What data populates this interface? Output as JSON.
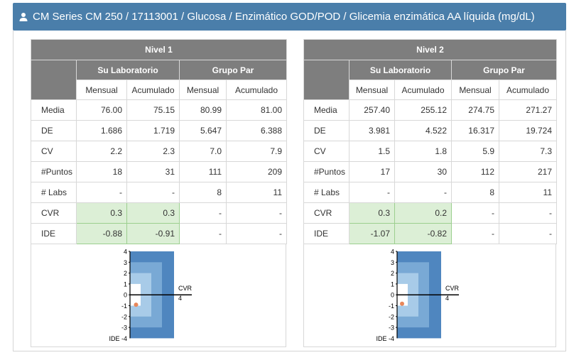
{
  "header": {
    "title": "CM Series CM 250 / 17113001 / Glucosa / Enzimático GOD/POD / Glicemia enzimática AA líquida (mg/dL)"
  },
  "levels": [
    {
      "title": "Nivel 1",
      "group_lab": "Su Laboratorio",
      "group_peer": "Grupo Par",
      "col_mensual": "Mensual",
      "col_acumulado": "Acumulado",
      "rows": [
        {
          "label": "Media",
          "values": [
            "76.00",
            "75.15",
            "80.99",
            "81.00"
          ]
        },
        {
          "label": "DE",
          "values": [
            "1.686",
            "1.719",
            "5.647",
            "6.388"
          ]
        },
        {
          "label": "CV",
          "values": [
            "2.2",
            "2.3",
            "7.0",
            "7.9"
          ]
        },
        {
          "label": "#Puntos",
          "values": [
            "18",
            "31",
            "111",
            "209"
          ]
        },
        {
          "label": "# Labs",
          "values": [
            "-",
            "-",
            "8",
            "11"
          ]
        },
        {
          "label": "CVR",
          "values": [
            "0.3",
            "0.3",
            "-",
            "-"
          ]
        },
        {
          "label": "IDE",
          "values": [
            "-0.88",
            "-0.91",
            "-",
            "-"
          ]
        }
      ],
      "plot": {
        "cvr": 0.3,
        "ide": -0.91
      }
    },
    {
      "title": "Nivel 2",
      "group_lab": "Su Laboratorio",
      "group_peer": "Grupo Par",
      "col_mensual": "Mensual",
      "col_acumulado": "Acumulado",
      "rows": [
        {
          "label": "Media",
          "values": [
            "257.40",
            "255.12",
            "274.75",
            "271.27"
          ]
        },
        {
          "label": "DE",
          "values": [
            "3.981",
            "4.522",
            "16.317",
            "19.724"
          ]
        },
        {
          "label": "CV",
          "values": [
            "1.5",
            "1.8",
            "5.9",
            "7.3"
          ]
        },
        {
          "label": "#Puntos",
          "values": [
            "17",
            "30",
            "112",
            "217"
          ]
        },
        {
          "label": "# Labs",
          "values": [
            "-",
            "-",
            "8",
            "11"
          ]
        },
        {
          "label": "CVR",
          "values": [
            "0.3",
            "0.2",
            "-",
            "-"
          ]
        },
        {
          "label": "IDE",
          "values": [
            "-1.07",
            "-0.82",
            "-",
            "-"
          ]
        }
      ],
      "plot": {
        "cvr": 0.2,
        "ide": -0.82
      }
    }
  ],
  "plot_labels": {
    "y_ticks": [
      "4",
      "3",
      "2",
      "1",
      "0",
      "-1",
      "-2",
      "-3"
    ],
    "y_bottom": "IDE -4",
    "x_axis": "CVR",
    "x_max": "4"
  },
  "colors": {
    "header_bg": "#4a7eaa",
    "group_header_bg": "#7e7e7e",
    "green_cell": "#dcefd6",
    "plot_outer": "#4f86bf",
    "plot_mid": "#79a9d5",
    "plot_inner": "#a8cbe8",
    "plot_core": "#cfe3f2",
    "marker": "#e8875a"
  }
}
